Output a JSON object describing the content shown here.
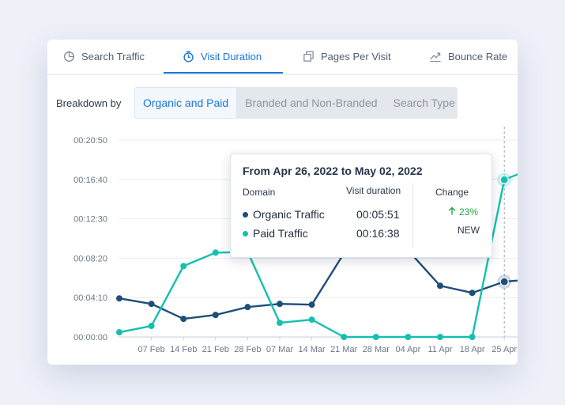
{
  "tabs": [
    {
      "label": "Search Traffic",
      "icon": "pie-chart-icon",
      "active": false
    },
    {
      "label": "Visit Duration",
      "icon": "stopwatch-icon",
      "active": true
    },
    {
      "label": "Pages Per Visit",
      "icon": "pages-icon",
      "active": false
    },
    {
      "label": "Bounce Rate",
      "icon": "trend-up-icon",
      "active": false
    }
  ],
  "breakdown": {
    "label": "Breakdown by",
    "options": [
      "Organic and Paid",
      "Branded and Non-Branded",
      "Search Type"
    ],
    "selected": "Organic and Paid"
  },
  "tooltip": {
    "title": "From Apr 26, 2022 to May 02, 2022",
    "col_domain": "Domain",
    "col_duration": "Visit duration",
    "col_change": "Change",
    "rows": [
      {
        "name": "Organic Traffic",
        "value": "00:05:51"
      },
      {
        "name": "Paid Traffic",
        "value": "00:16:38"
      }
    ],
    "change_value": "23%",
    "change_new": "NEW"
  },
  "colors": {
    "accent": "#1a73d9",
    "organic": "#1f4e79",
    "paid": "#14c0b0",
    "up": "#21a846"
  },
  "chart_data": {
    "type": "line",
    "y_ticks": [
      "00:00:00",
      "00:04:10",
      "00:08:20",
      "00:12:30",
      "00:16:40",
      "00:20:50"
    ],
    "ylim": [
      0,
      1250
    ],
    "x_tick_labels": [
      "07 Feb",
      "14 Feb",
      "21 Feb",
      "28 Feb",
      "07 Mar",
      "14 Mar",
      "21 Mar",
      "28 Mar",
      "04 Apr",
      "11 Apr",
      "18 Apr",
      "25 Apr"
    ],
    "x": [
      "31 Jan",
      "07 Feb",
      "14 Feb",
      "21 Feb",
      "28 Feb",
      "07 Mar",
      "14 Mar",
      "21 Mar",
      "28 Mar",
      "04 Apr",
      "11 Apr",
      "18 Apr",
      "25 Apr",
      "02 May"
    ],
    "series": [
      {
        "name": "Organic Traffic",
        "color": "#1f4e79",
        "values": [
          245,
          210,
          115,
          140,
          190,
          210,
          205,
          530,
          570,
          550,
          325,
          280,
          351,
          368
        ]
      },
      {
        "name": "Paid Traffic",
        "color": "#14c0b0",
        "values": [
          30,
          70,
          450,
          535,
          540,
          90,
          110,
          0,
          0,
          0,
          0,
          0,
          998,
          1080
        ]
      }
    ],
    "highlight_x": "25 Apr",
    "grid": true
  }
}
